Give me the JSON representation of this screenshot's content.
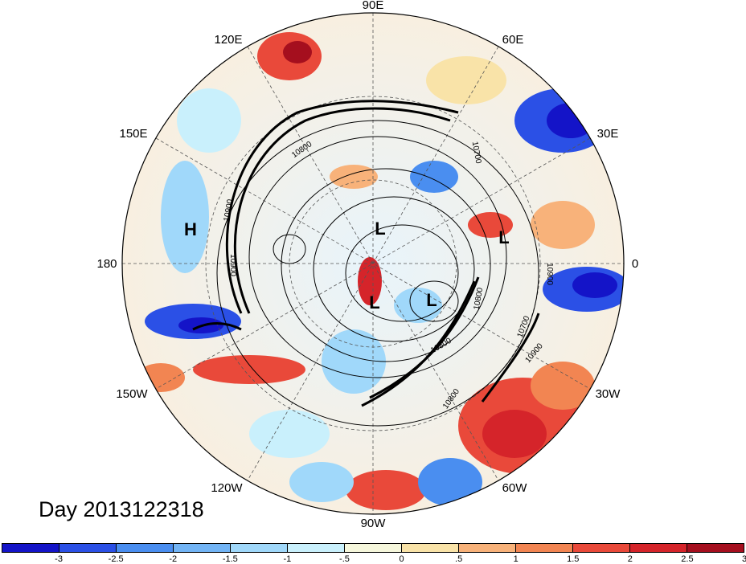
{
  "map": {
    "longitude_labels": [
      "90E",
      "60E",
      "30E",
      "0",
      "30W",
      "60W",
      "90W",
      "120W",
      "150W",
      "180",
      "150E",
      "120E"
    ],
    "pressure_centers": [
      "H",
      "L",
      "L",
      "L",
      "L"
    ],
    "contour_labels": [
      "10900",
      "10800",
      "10700",
      "10900",
      "10800",
      "10900",
      "10800",
      "10700",
      "10900",
      "10800"
    ],
    "day_label": "Day 2013122318"
  },
  "colorbar": {
    "colors": [
      "#1414c8",
      "#2b50e6",
      "#4a8ef0",
      "#72b4f5",
      "#a0d8fa",
      "#c9f0fc",
      "#f6f7dc",
      "#f9e3a8",
      "#f8b27a",
      "#f28552",
      "#e9493a",
      "#d5242a",
      "#a50f1e"
    ],
    "ticks": [
      "-3",
      "-2.5",
      "-2",
      "-1.5",
      "-1",
      "-.5",
      "0",
      ".5",
      "1",
      "1.5",
      "2",
      "2.5",
      "3"
    ]
  }
}
